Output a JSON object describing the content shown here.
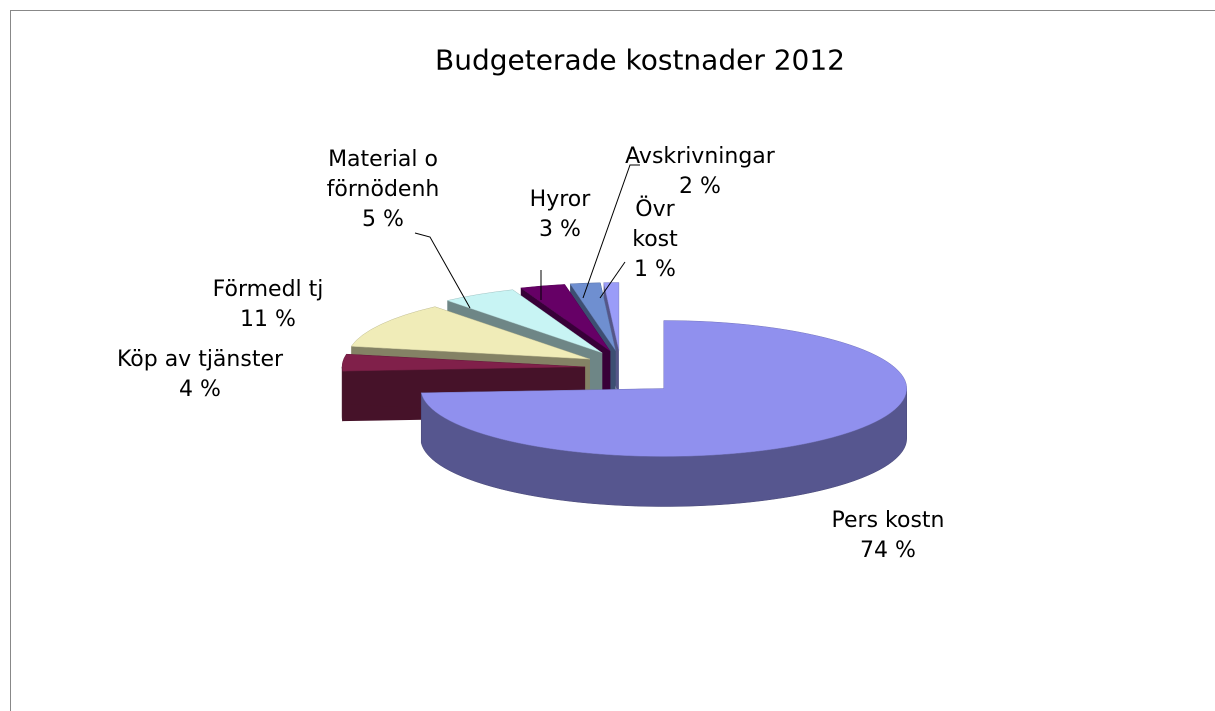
{
  "chart_data": {
    "type": "pie",
    "title": "Budgeterade kostnader 2012",
    "categories": [
      "Pers kostn",
      "Köp av tjänster",
      "Förmedl tj",
      "Material o förnödenh",
      "Hyror",
      "Avskrivningar",
      "Övr kost"
    ],
    "values": [
      74,
      4,
      11,
      5,
      3,
      2,
      1
    ],
    "value_labels": [
      "74 %",
      "4 %",
      "11 %",
      "5 %",
      "3 %",
      "2 %",
      "1 %"
    ],
    "colors": [
      "#9090ee",
      "#80204a",
      "#f0ecb8",
      "#c8f4f4",
      "#660066",
      "#6f8fd0",
      "#9a9cf8"
    ]
  }
}
